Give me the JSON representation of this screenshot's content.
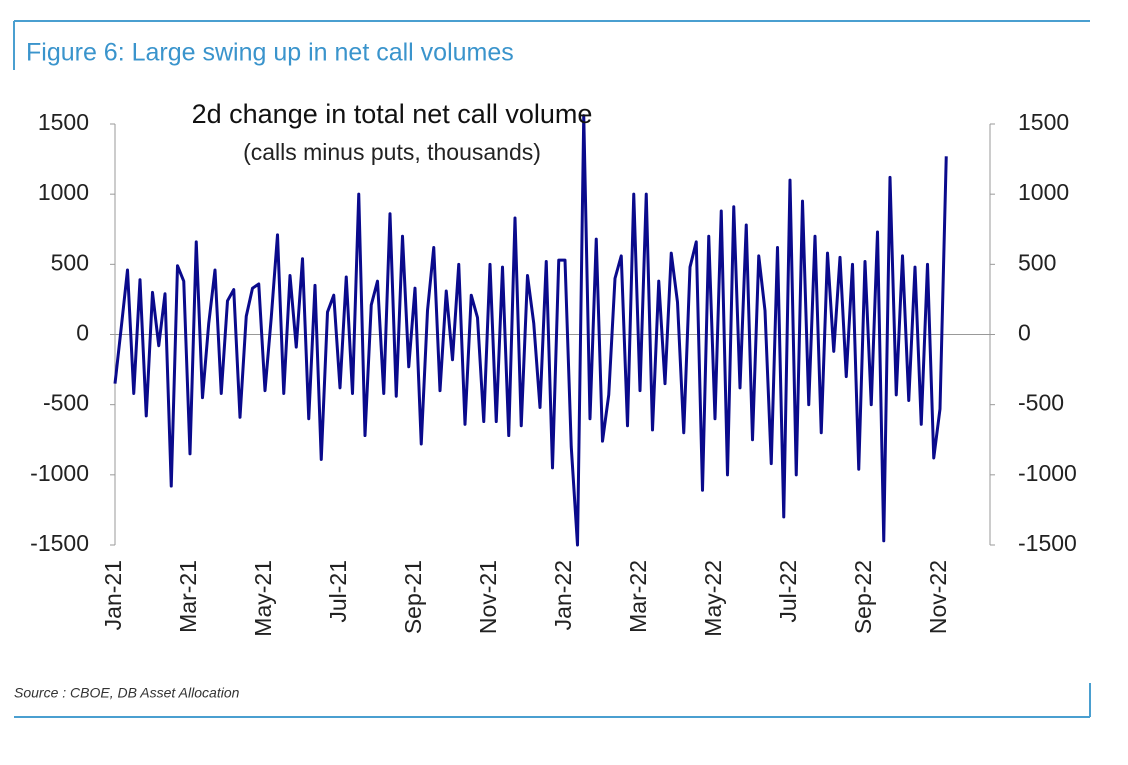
{
  "chart_data": {
    "type": "line",
    "title": "Figure 6: Large swing up in net call volumes",
    "annotations": [
      "2d change in total net call volume",
      "(calls minus puts, thousands)"
    ],
    "source": "Source : CBOE, DB Asset Allocation",
    "categories": [
      "Jan-21",
      null,
      null,
      null,
      null,
      null,
      null,
      null,
      null,
      null,
      null,
      null,
      "Mar-21",
      null,
      null,
      null,
      null,
      null,
      null,
      null,
      null,
      null,
      null,
      null,
      "May-21",
      null,
      null,
      null,
      null,
      null,
      null,
      null,
      null,
      null,
      null,
      null,
      "Jul-21",
      null,
      null,
      null,
      null,
      null,
      null,
      null,
      null,
      null,
      null,
      null,
      "Sep-21",
      null,
      null,
      null,
      null,
      null,
      null,
      null,
      null,
      null,
      null,
      null,
      "Nov-21",
      null,
      null,
      null,
      null,
      null,
      null,
      null,
      null,
      null,
      null,
      null,
      "Jan-22",
      null,
      null,
      null,
      null,
      null,
      null,
      null,
      null,
      null,
      null,
      null,
      "Mar-22",
      null,
      null,
      null,
      null,
      null,
      null,
      null,
      null,
      null,
      null,
      null,
      "May-22",
      null,
      null,
      null,
      null,
      null,
      null,
      null,
      null,
      null,
      null,
      null,
      "Jul-22",
      null,
      null,
      null,
      null,
      null,
      null,
      null,
      null,
      null,
      null,
      null,
      "Sep-22",
      null,
      null,
      null,
      null,
      null,
      null,
      null,
      null,
      null,
      null,
      null,
      "Nov-22",
      null
    ],
    "values": [
      -350,
      50,
      460,
      -420,
      390,
      -580,
      300,
      -80,
      290,
      -1080,
      490,
      380,
      -850,
      660,
      -450,
      80,
      460,
      -420,
      240,
      320,
      -590,
      130,
      330,
      360,
      -400,
      120,
      710,
      -420,
      420,
      -90,
      540,
      -600,
      350,
      -890,
      160,
      280,
      -380,
      410,
      -420,
      1000,
      -720,
      210,
      380,
      -420,
      860,
      -440,
      700,
      -230,
      330,
      -780,
      170,
      620,
      -400,
      310,
      -180,
      500,
      -640,
      280,
      120,
      -620,
      500,
      -620,
      480,
      -720,
      830,
      -650,
      420,
      80,
      -520,
      520,
      -950,
      530,
      530,
      -800,
      -1500,
      1560,
      -600,
      680,
      -760,
      -430,
      400,
      560,
      -650,
      1000,
      -400,
      1000,
      -680,
      380,
      -350,
      580,
      230,
      -700,
      480,
      660,
      -1110,
      700,
      -600,
      880,
      -1000,
      910,
      -380,
      780,
      -750,
      560,
      170,
      -920,
      620,
      -1300,
      1100,
      -1000,
      950,
      -500,
      700,
      -700,
      580,
      -120,
      550,
      -300,
      500,
      -960,
      520,
      -500,
      730,
      -1470,
      1120,
      -430,
      560,
      -470,
      480,
      -640,
      500,
      -880,
      -530,
      1270
    ],
    "color": "#0a0a8c",
    "ylim": [
      -1500,
      1500
    ],
    "yticks": [
      -1500,
      -1000,
      -500,
      0,
      500,
      1000,
      1500
    ],
    "y2lim": [
      -1500,
      1500
    ],
    "y2ticks": [
      -1500,
      -1000,
      -500,
      0,
      500,
      1000,
      1500
    ]
  }
}
